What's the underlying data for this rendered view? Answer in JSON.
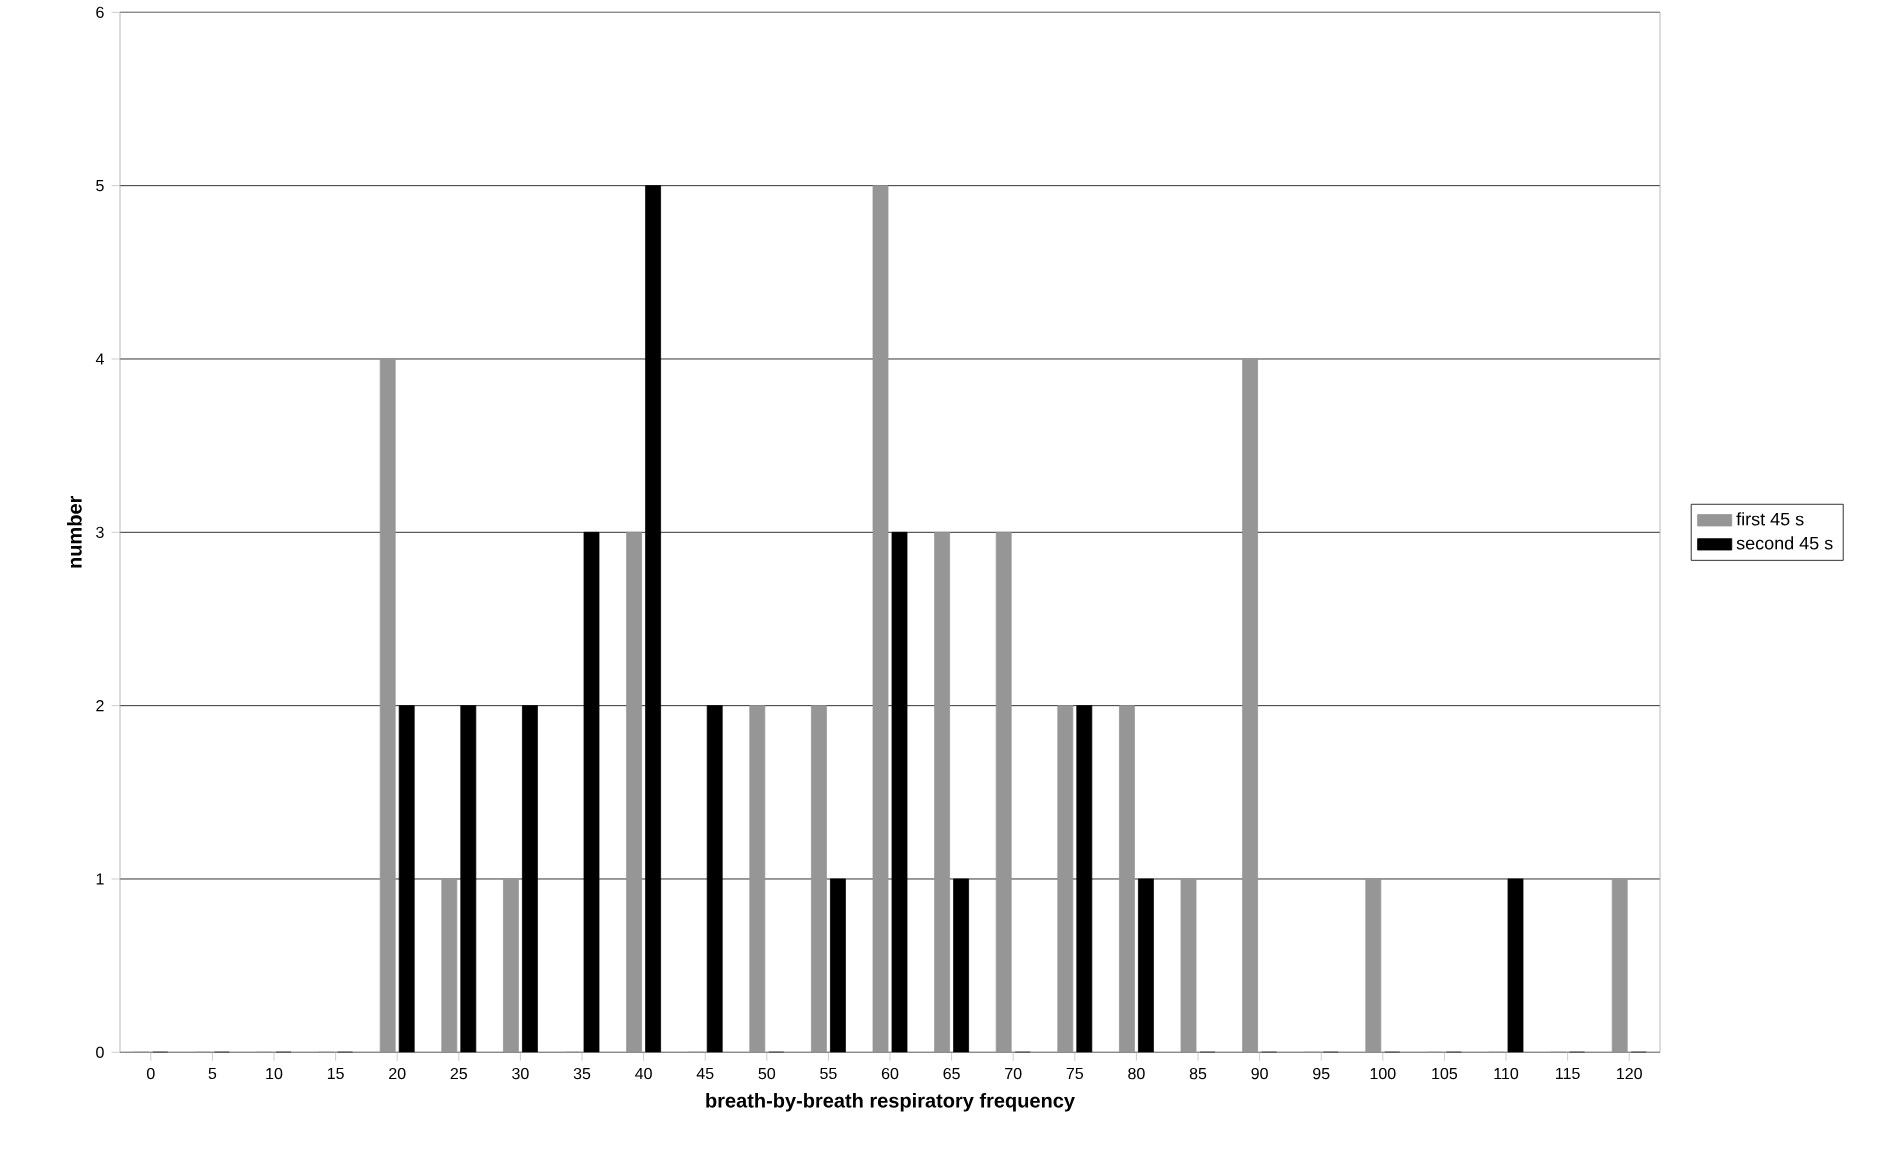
{
  "chart_data": {
    "type": "bar",
    "xlabel": "breath-by-breath respiratory frequency",
    "ylabel": "number",
    "categories": [
      "0",
      "5",
      "10",
      "15",
      "20",
      "25",
      "30",
      "35",
      "40",
      "45",
      "50",
      "55",
      "60",
      "65",
      "70",
      "75",
      "80",
      "85",
      "90",
      "95",
      "100",
      "105",
      "110",
      "115",
      "120"
    ],
    "series": [
      {
        "name": "first 45 s",
        "color": "#969696",
        "values": [
          0,
          0,
          0,
          0,
          4,
          1,
          1,
          0,
          3,
          0,
          2,
          2,
          5,
          3,
          3,
          2,
          2,
          1,
          4,
          0,
          1,
          0,
          0,
          0,
          1
        ]
      },
      {
        "name": "second 45 s",
        "color": "#000000",
        "values": [
          0,
          0,
          0,
          0,
          2,
          2,
          2,
          3,
          5,
          2,
          0,
          1,
          3,
          1,
          0,
          2,
          1,
          0,
          0,
          0,
          0,
          0,
          1,
          0,
          0
        ]
      }
    ],
    "ylim": [
      0,
      6
    ],
    "yticks": [
      0,
      1,
      2,
      3,
      4,
      5,
      6
    ],
    "grid": "y",
    "legend": "right"
  }
}
